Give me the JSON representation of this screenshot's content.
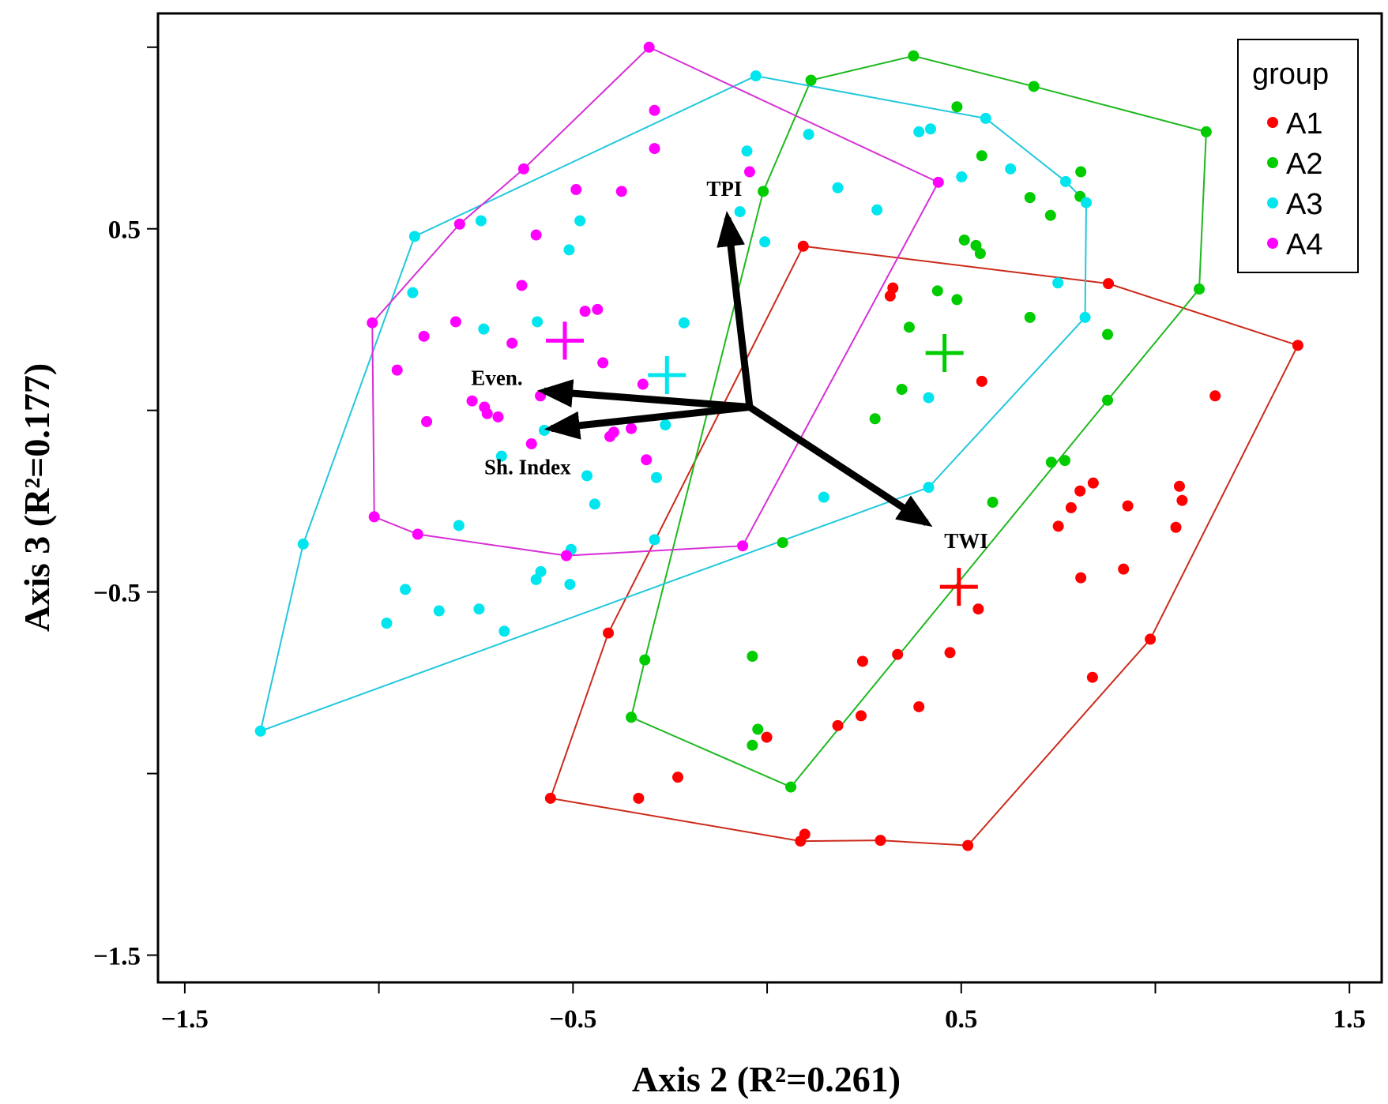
{
  "chart_data": {
    "type": "scatter",
    "title": "",
    "xlabel": "Axis 2 (R²=0.261)",
    "ylabel": "Axis 3 (R²=0.177)",
    "xlim": [
      -1.569,
      1.583
    ],
    "ylim": [
      -1.575,
      1.093
    ],
    "x_ticks": [
      -1.5,
      -1.0,
      -0.5,
      0,
      0.5,
      1.0,
      1.5
    ],
    "x_tick_labels": {
      "-1.5": "−1.5",
      "-0.5": "−0.5",
      "0.5": "0.5",
      "1.5": "1.5"
    },
    "y_ticks": [
      1.0,
      0.5,
      0,
      -0.5,
      -1.0,
      -1.5
    ],
    "y_tick_labels": {
      "0.5": "0.5",
      "-0.5": "−0.5",
      "-1.5": "−1.5"
    },
    "grid": false,
    "legend": {
      "title": "group",
      "placement": "top-right"
    },
    "series": [
      {
        "name": "A1",
        "color": "#ff0000",
        "hull_color": "#cc2a1a",
        "centroid": [
          0.494,
          -0.486
        ],
        "hull": [
          [
            0.093,
            0.452
          ],
          [
            0.879,
            0.349
          ],
          [
            1.367,
            0.179
          ],
          [
            0.987,
            -0.63
          ],
          [
            0.517,
            -1.198
          ],
          [
            0.292,
            -1.184
          ],
          [
            0.086,
            -1.186
          ],
          [
            -0.558,
            -1.068
          ],
          [
            -0.409,
            -0.613
          ]
        ],
        "points": [
          [
            0.093,
            0.452
          ],
          [
            0.879,
            0.349
          ],
          [
            1.367,
            0.179
          ],
          [
            0.987,
            -0.63
          ],
          [
            0.517,
            -1.198
          ],
          [
            0.292,
            -1.184
          ],
          [
            0.086,
            -1.186
          ],
          [
            0.097,
            -1.167
          ],
          [
            -0.558,
            -1.068
          ],
          [
            -0.409,
            -0.613
          ],
          [
            0.324,
            0.337
          ],
          [
            0.317,
            0.315
          ],
          [
            0.553,
            0.08
          ],
          [
            1.154,
            0.04
          ],
          [
            0.84,
            -0.2
          ],
          [
            0.806,
            -0.222
          ],
          [
            1.062,
            -0.209
          ],
          [
            0.783,
            -0.268
          ],
          [
            0.929,
            -0.263
          ],
          [
            1.069,
            -0.248
          ],
          [
            0.75,
            -0.319
          ],
          [
            1.053,
            -0.322
          ],
          [
            0.808,
            -0.461
          ],
          [
            0.918,
            -0.437
          ],
          [
            0.544,
            -0.547
          ],
          [
            0.246,
            -0.691
          ],
          [
            0.336,
            -0.672
          ],
          [
            0.471,
            -0.667
          ],
          [
            0.838,
            -0.735
          ],
          [
            0.391,
            -0.816
          ],
          [
            0.242,
            -0.841
          ],
          [
            0.182,
            -0.868
          ],
          [
            -0.001,
            -0.9
          ],
          [
            -0.23,
            -1.01
          ],
          [
            -0.331,
            -1.068
          ]
        ]
      },
      {
        "name": "A2",
        "color": "#00cc00",
        "hull_color": "#1fb81f",
        "centroid": [
          0.457,
          0.158
        ],
        "hull": [
          [
            0.113,
            0.909
          ],
          [
            0.377,
            0.976
          ],
          [
            0.687,
            0.892
          ],
          [
            1.131,
            0.767
          ],
          [
            1.113,
            0.334
          ],
          [
            0.877,
            0.028
          ],
          [
            0.061,
            -1.037
          ],
          [
            -0.35,
            -0.845
          ],
          [
            -0.315,
            -0.687
          ],
          [
            -0.01,
            0.603
          ]
        ],
        "points": [
          [
            0.113,
            0.909
          ],
          [
            0.377,
            0.976
          ],
          [
            0.687,
            0.892
          ],
          [
            1.131,
            0.767
          ],
          [
            1.113,
            0.334
          ],
          [
            0.877,
            0.028
          ],
          [
            0.061,
            -1.037
          ],
          [
            -0.35,
            -0.845
          ],
          [
            -0.315,
            -0.687
          ],
          [
            -0.01,
            0.603
          ],
          [
            0.489,
            0.836
          ],
          [
            0.553,
            0.701
          ],
          [
            0.808,
            0.657
          ],
          [
            0.677,
            0.586
          ],
          [
            0.806,
            0.589
          ],
          [
            0.73,
            0.537
          ],
          [
            0.508,
            0.469
          ],
          [
            0.538,
            0.454
          ],
          [
            0.549,
            0.432
          ],
          [
            0.439,
            0.329
          ],
          [
            0.489,
            0.305
          ],
          [
            0.677,
            0.256
          ],
          [
            0.366,
            0.229
          ],
          [
            0.877,
            0.209
          ],
          [
            0.347,
            0.058
          ],
          [
            0.278,
            -0.023
          ],
          [
            0.767,
            -0.138
          ],
          [
            0.732,
            -0.143
          ],
          [
            0.581,
            -0.253
          ],
          [
            0.04,
            -0.364
          ],
          [
            -0.038,
            -0.677
          ],
          [
            -0.024,
            -0.878
          ],
          [
            -0.038,
            -0.922
          ]
        ]
      },
      {
        "name": "A3",
        "color": "#00e5ee",
        "hull_color": "#22c8dc",
        "centroid": [
          -0.258,
          0.097
        ],
        "hull": [
          [
            -0.029,
            0.921
          ],
          [
            0.563,
            0.804
          ],
          [
            0.769,
            0.63
          ],
          [
            0.822,
            0.572
          ],
          [
            0.819,
            0.256
          ],
          [
            0.416,
            -0.212
          ],
          [
            -1.305,
            -0.883
          ],
          [
            -1.195,
            -0.368
          ],
          [
            -0.908,
            0.479
          ]
        ],
        "points": [
          [
            -0.029,
            0.921
          ],
          [
            0.563,
            0.804
          ],
          [
            0.769,
            0.63
          ],
          [
            0.822,
            0.572
          ],
          [
            0.819,
            0.256
          ],
          [
            0.416,
            -0.212
          ],
          [
            -1.305,
            -0.883
          ],
          [
            -1.195,
            -0.368
          ],
          [
            -0.908,
            0.479
          ],
          [
            0.391,
            0.767
          ],
          [
            0.421,
            0.775
          ],
          [
            0.107,
            0.76
          ],
          [
            -0.052,
            0.714
          ],
          [
            0.627,
            0.665
          ],
          [
            0.501,
            0.643
          ],
          [
            0.182,
            0.613
          ],
          [
            0.283,
            0.552
          ],
          [
            -0.737,
            0.522
          ],
          [
            -0.482,
            0.522
          ],
          [
            -0.006,
            0.464
          ],
          [
            -0.51,
            0.442
          ],
          [
            -0.913,
            0.324
          ],
          [
            0.749,
            0.351
          ],
          [
            -0.592,
            0.244
          ],
          [
            -0.214,
            0.241
          ],
          [
            -0.73,
            0.224
          ],
          [
            -0.07,
            0.547
          ],
          [
            0.416,
            0.035
          ],
          [
            -0.262,
            -0.04
          ],
          [
            -0.574,
            -0.055
          ],
          [
            -0.684,
            -0.126
          ],
          [
            -0.464,
            -0.18
          ],
          [
            -0.285,
            -0.185
          ],
          [
            0.146,
            -0.239
          ],
          [
            -0.444,
            -0.258
          ],
          [
            -0.794,
            -0.317
          ],
          [
            -0.29,
            -0.356
          ],
          [
            -0.505,
            -0.383
          ],
          [
            -0.583,
            -0.444
          ],
          [
            -0.595,
            -0.466
          ],
          [
            -0.508,
            -0.479
          ],
          [
            -0.932,
            -0.493
          ],
          [
            -0.845,
            -0.552
          ],
          [
            -0.742,
            -0.547
          ],
          [
            -0.98,
            -0.586
          ],
          [
            -0.677,
            -0.608
          ]
        ]
      },
      {
        "name": "A4",
        "color": "#ff00ff",
        "hull_color": "#d630d6",
        "centroid": [
          -0.521,
          0.192
        ],
        "hull": [
          [
            -0.304,
            1.0
          ],
          [
            0.441,
            0.628
          ],
          [
            -0.063,
            -0.373
          ],
          [
            -0.517,
            -0.4
          ],
          [
            -0.9,
            -0.341
          ],
          [
            -1.012,
            -0.293
          ],
          [
            -1.017,
            0.241
          ],
          [
            -0.792,
            0.513
          ],
          [
            -0.627,
            0.665
          ]
        ],
        "points": [
          [
            -0.304,
            1.0
          ],
          [
            0.441,
            0.628
          ],
          [
            -0.063,
            -0.373
          ],
          [
            -0.517,
            -0.4
          ],
          [
            -0.9,
            -0.341
          ],
          [
            -1.012,
            -0.293
          ],
          [
            -1.017,
            0.241
          ],
          [
            -0.627,
            0.665
          ],
          [
            -0.792,
            0.513
          ],
          [
            -0.29,
            0.826
          ],
          [
            -0.29,
            0.721
          ],
          [
            -0.045,
            0.657
          ],
          [
            -0.492,
            0.608
          ],
          [
            -0.375,
            0.603
          ],
          [
            -0.595,
            0.483
          ],
          [
            -0.632,
            0.344
          ],
          [
            -0.469,
            0.273
          ],
          [
            -0.437,
            0.278
          ],
          [
            -0.802,
            0.244
          ],
          [
            -0.884,
            0.204
          ],
          [
            -0.657,
            0.185
          ],
          [
            -0.953,
            0.111
          ],
          [
            -0.423,
            0.131
          ],
          [
            -0.32,
            0.072
          ],
          [
            -0.584,
            0.04
          ],
          [
            -0.76,
            0.026
          ],
          [
            -0.728,
            0.009
          ],
          [
            -0.721,
            -0.009
          ],
          [
            -0.693,
            -0.018
          ],
          [
            -0.877,
            -0.031
          ],
          [
            -0.395,
            -0.06
          ],
          [
            -0.35,
            -0.05
          ],
          [
            -0.405,
            -0.072
          ],
          [
            -0.607,
            -0.092
          ],
          [
            -0.311,
            -0.136
          ]
        ]
      }
    ],
    "vectors": {
      "origin": [
        -0.045,
        0.009
      ],
      "items": [
        {
          "label": "TPI",
          "tip": [
            -0.102,
            0.53
          ]
        },
        {
          "label": "Even.",
          "tip": [
            -0.574,
            0.053
          ]
        },
        {
          "label": "Sh. Index",
          "tip": [
            -0.556,
            -0.05
          ]
        },
        {
          "label": "TWI",
          "tip": [
            0.411,
            -0.31
          ]
        }
      ]
    }
  }
}
